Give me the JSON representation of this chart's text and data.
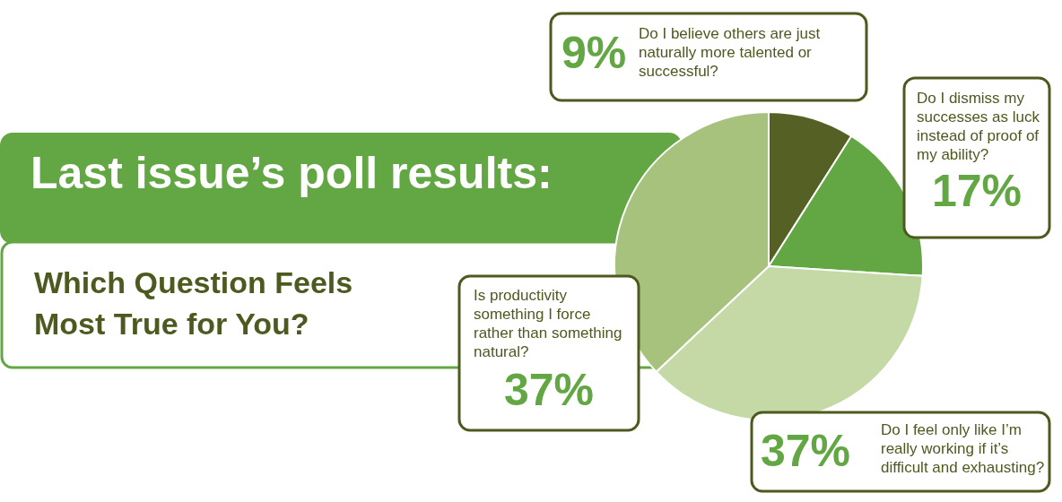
{
  "chart_data": {
    "type": "pie",
    "title": "Last issue’s poll results:",
    "subtitle": "Which Question Feels Most True for You?",
    "categories": [
      "Do I believe others are just naturally more talented or successful?",
      "Do I dismiss my successes as luck instead of proof of my ability?",
      "Do I feel only like I’m really working if it’s difficult and exhausting?",
      "Is productivity something I force rather than something natural?"
    ],
    "values": [
      9,
      17,
      37,
      37
    ],
    "value_labels": [
      "9%",
      "17%",
      "37%",
      "37%"
    ],
    "colors": [
      "#556124",
      "#62a744",
      "#c5d9a7",
      "#a7c27c"
    ]
  }
}
